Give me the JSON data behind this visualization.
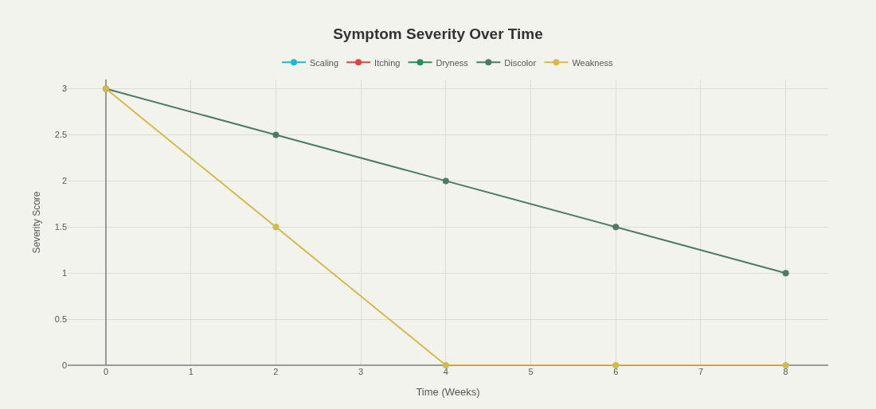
{
  "chart_data": {
    "type": "line",
    "title": "Symptom Severity Over Time",
    "xlabel": "Time (Weeks)",
    "ylabel": "Severity Score",
    "x": [
      0,
      2,
      4,
      6,
      8
    ],
    "series": [
      {
        "name": "Scaling",
        "color": "#1fb8cd",
        "values": [
          null,
          null,
          null,
          null,
          null
        ]
      },
      {
        "name": "Itching",
        "color": "#db4545",
        "values": [
          null,
          null,
          null,
          null,
          null
        ]
      },
      {
        "name": "Dryness",
        "color": "#2e8b57",
        "values": [
          null,
          null,
          null,
          null,
          null
        ]
      },
      {
        "name": "Discolor",
        "color": "#4f7a66",
        "values": [
          3,
          2.5,
          2,
          1.5,
          1
        ]
      },
      {
        "name": "Weakness",
        "color": "#d2ba4c",
        "values": [
          3,
          1.5,
          0,
          0,
          0
        ]
      }
    ],
    "xlim": [
      -0.45,
      8.5
    ],
    "xticks": [
      0,
      1,
      2,
      3,
      4,
      5,
      6,
      7,
      8
    ],
    "ylim": [
      0,
      3.1
    ],
    "yticks": [
      0,
      0.5,
      1,
      1.5,
      2,
      2.5,
      3
    ],
    "grid": true,
    "legend": "top",
    "marker": "circle",
    "line_style": "solid"
  }
}
